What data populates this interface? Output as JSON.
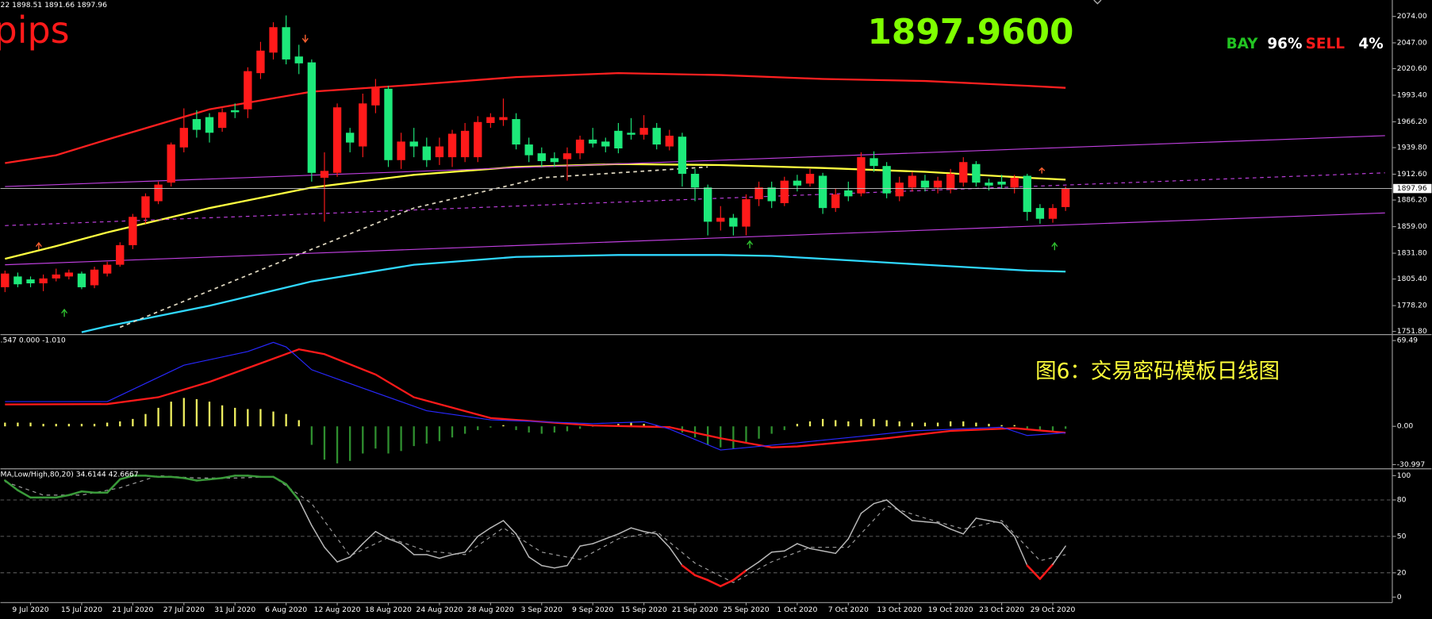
{
  "header": {
    "ohlc_text": "22 1898.51 1891.66 1897.96",
    "pips_text": "pips",
    "price_big": "1897.9600",
    "bay_label": "BAY",
    "bay_pct": "96%",
    "sell_label": "SELL",
    "sell_pct": "4%",
    "caption": "图6：交易密码模板日线图"
  },
  "chart_data": [
    {
      "type": "candlestick",
      "categories": [
        null,
        null,
        "9 Jul 2020",
        null,
        null,
        null,
        "15 Jul 2020",
        null,
        null,
        null,
        "21 Jul 2020",
        null,
        null,
        null,
        "27 Jul 2020",
        null,
        null,
        null,
        "31 Jul 2020",
        null,
        null,
        null,
        "6 Aug 2020",
        null,
        null,
        null,
        "12 Aug 2020",
        null,
        null,
        null,
        "18 Aug 2020",
        null,
        null,
        null,
        "24 Aug 2020",
        null,
        null,
        null,
        "28 Aug 2020",
        null,
        null,
        null,
        "3 Sep 2020",
        null,
        null,
        null,
        "9 Sep 2020",
        null,
        null,
        null,
        "15 Sep 2020",
        null,
        null,
        null,
        "21 Sep 2020",
        null,
        null,
        null,
        "25 Sep 2020",
        null,
        null,
        null,
        "1 Oct 2020",
        null,
        null,
        null,
        "7 Oct 2020",
        null,
        null,
        null,
        "13 Oct 2020",
        null,
        null,
        null,
        "19 Oct 2020",
        null,
        null,
        null,
        "23 Oct 2020",
        null,
        null,
        null,
        "29 Oct 2020",
        null
      ],
      "open": [
        1797,
        1808,
        1805,
        1801,
        1806,
        1808,
        1811,
        1799,
        1811,
        1820,
        1840,
        1868,
        1885,
        1904,
        1940,
        1969,
        1971,
        1960,
        1978,
        1979,
        2016,
        2037,
        2063,
        2033,
        2027,
        1909,
        1914,
        1955,
        1941,
        1983,
        2000,
        1927,
        1946,
        1941,
        1930,
        1930,
        1930,
        1930,
        1965,
        1968,
        1969,
        1943,
        1934,
        1929,
        1928,
        1934,
        1948,
        1946,
        1957,
        1955,
        1953,
        1960,
        1941,
        1951,
        1913,
        1899,
        1864,
        1868,
        1859,
        1887,
        1899,
        1883,
        1906,
        1903,
        1911,
        1878,
        1896,
        1893,
        1929,
        1921,
        1890,
        1899,
        1906,
        1899,
        1897,
        1904,
        1923,
        1904,
        1905,
        1899,
        1911,
        1878,
        1867,
        1879
      ],
      "high": [
        1814,
        1812,
        1808,
        1810,
        1816,
        1815,
        1813,
        1818,
        1823,
        1843,
        1872,
        1893,
        1905,
        1945,
        1980,
        1978,
        1975,
        1980,
        1985,
        2022,
        2048,
        2068,
        2075,
        2045,
        2030,
        1935,
        1985,
        1960,
        1995,
        2010,
        2003,
        1955,
        1960,
        1950,
        1950,
        1958,
        1965,
        1972,
        1975,
        1990,
        1975,
        1950,
        1940,
        1935,
        1940,
        1952,
        1960,
        1950,
        1965,
        1970,
        1973,
        1965,
        1958,
        1955,
        1918,
        1902,
        1880,
        1872,
        1892,
        1905,
        1905,
        1910,
        1912,
        1918,
        1914,
        1898,
        1905,
        1935,
        1936,
        1925,
        1910,
        1915,
        1912,
        1910,
        1918,
        1930,
        1926,
        1908,
        1912,
        1912,
        1913,
        1882,
        1882,
        1900
      ],
      "low": [
        1792,
        1797,
        1797,
        1793,
        1803,
        1805,
        1795,
        1796,
        1808,
        1818,
        1836,
        1862,
        1882,
        1900,
        1935,
        1950,
        1945,
        1956,
        1970,
        1970,
        2010,
        2030,
        2025,
        2015,
        1905,
        1864,
        1910,
        1935,
        1930,
        1975,
        1920,
        1918,
        1930,
        1920,
        1922,
        1920,
        1925,
        1925,
        1960,
        1962,
        1938,
        1925,
        1920,
        1920,
        1906,
        1928,
        1940,
        1935,
        1934,
        1948,
        1948,
        1938,
        1937,
        1900,
        1885,
        1850,
        1855,
        1850,
        1850,
        1880,
        1878,
        1880,
        1895,
        1900,
        1872,
        1874,
        1885,
        1890,
        1915,
        1888,
        1885,
        1895,
        1895,
        1893,
        1893,
        1900,
        1900,
        1896,
        1898,
        1893,
        1865,
        1862,
        1863,
        1875
      ],
      "close": [
        1811,
        1800,
        1801,
        1806,
        1810,
        1812,
        1797,
        1815,
        1820,
        1840,
        1869,
        1890,
        1902,
        1943,
        1960,
        1958,
        1955,
        1976,
        1976,
        2018,
        2039,
        2063,
        2030,
        2026,
        1914,
        1916,
        1981,
        1945,
        1985,
        2002,
        1927,
        1946,
        1941,
        1927,
        1941,
        1954,
        1957,
        1966,
        1971,
        1971,
        1943,
        1932,
        1926,
        1925,
        1934,
        1948,
        1944,
        1941,
        1939,
        1953,
        1960,
        1943,
        1952,
        1913,
        1899,
        1864,
        1868,
        1859,
        1887,
        1899,
        1885,
        1906,
        1901,
        1913,
        1878,
        1892,
        1890,
        1930,
        1921,
        1893,
        1904,
        1911,
        1899,
        1906,
        1913,
        1925,
        1904,
        1901,
        1902,
        1909,
        1874,
        1867,
        1878,
        1898
      ],
      "up_color": "#ff1a1a",
      "down_color": "#1de97a",
      "ylim": [
        1749,
        2088
      ],
      "yticks": [
        {
          "value": 2074,
          "label": "2074.00"
        },
        {
          "value": 2047,
          "label": "2047.00"
        },
        {
          "value": 2020.6,
          "label": "2020.60"
        },
        {
          "value": 1993.4,
          "label": "1993.40"
        },
        {
          "value": 1966.2,
          "label": "1966.20"
        },
        {
          "value": 1939.8,
          "label": "1939.80"
        },
        {
          "value": 1912.6,
          "label": "1912.60"
        },
        {
          "value": 1886.2,
          "label": "1886.20"
        },
        {
          "value": 1859,
          "label": "1859.00"
        },
        {
          "value": 1831.8,
          "label": "1831.80"
        },
        {
          "value": 1805.4,
          "label": "1805.40"
        },
        {
          "value": 1778.2,
          "label": "1778.20"
        },
        {
          "value": 1751.8,
          "label": "1751.80"
        }
      ],
      "price_line": {
        "value": 1897.96,
        "label": "1897.96"
      },
      "overlays": [
        {
          "color": "#ff2020",
          "width": 2,
          "dash": false,
          "x": [
            0,
            4,
            8,
            16,
            24,
            32,
            40,
            48,
            56,
            64,
            72,
            80,
            83
          ],
          "values": [
            1924,
            1932,
            1948,
            1979,
            1997,
            2004,
            2012,
            2016,
            2014,
            2010,
            2008,
            2003,
            2001
          ]
        },
        {
          "color": "#ffff40",
          "width": 2,
          "dash": false,
          "x": [
            0,
            4,
            8,
            16,
            24,
            32,
            40,
            48,
            56,
            64,
            72,
            80,
            83
          ],
          "values": [
            1826,
            1839,
            1853,
            1878,
            1899,
            1912,
            1920,
            1923,
            1922,
            1919,
            1915,
            1909,
            1907
          ]
        },
        {
          "color": "#30d8ff",
          "width": 2,
          "dash": false,
          "x": [
            6,
            8,
            16,
            24,
            32,
            40,
            48,
            56,
            60,
            64,
            72,
            80,
            83
          ],
          "values": [
            1751,
            1757,
            1778,
            1803,
            1820,
            1828,
            1830,
            1830,
            1829,
            1826,
            1820,
            1814,
            1813
          ]
        },
        {
          "color": "#c040e0",
          "width": 1,
          "dash": false,
          "x": [
            0,
            108
          ],
          "values": [
            1900,
            1952
          ]
        },
        {
          "color": "#c040e0",
          "width": 1,
          "dash": false,
          "x": [
            0,
            108
          ],
          "values": [
            1820,
            1873
          ]
        },
        {
          "color": "#c040e0",
          "width": 1,
          "dash": true,
          "x": [
            0,
            108
          ],
          "values": [
            1860,
            1914
          ]
        },
        {
          "color": "#e0d8c0",
          "width": 1.5,
          "dash": true,
          "x": [
            9,
            21,
            32,
            42,
            55
          ],
          "values": [
            1756,
            1820,
            1878,
            1909,
            1920
          ]
        }
      ]
    },
    {
      "type": "macd",
      "header": ".547 0.000 -1.010",
      "histogram": [
        3,
        3,
        3,
        2,
        2,
        2,
        2,
        2,
        3,
        4,
        6,
        10,
        15,
        20,
        23,
        22,
        20,
        17,
        15,
        14,
        14,
        12,
        10,
        5,
        -15,
        -27,
        -30,
        -28,
        -22,
        -18,
        -22,
        -20,
        -16,
        -14,
        -12,
        -9,
        -6,
        -3,
        -1,
        1,
        -3,
        -5,
        -6,
        -5,
        -4,
        -2,
        0.5,
        1,
        2,
        3,
        2,
        1,
        -1,
        -5,
        -9,
        -15,
        -17,
        -18,
        -14,
        -10,
        -6,
        -3,
        2,
        4,
        6,
        5,
        4,
        6,
        6,
        5,
        4,
        3,
        3,
        3,
        4,
        4,
        3,
        2,
        1,
        1,
        -2,
        -4,
        -4,
        -2
      ],
      "pos_color": "#f0f060",
      "neg_color": "#2f8f2f",
      "lines": [
        {
          "color": "#ff1a1a",
          "width": 2,
          "x": [
            0,
            8,
            12,
            16,
            20,
            23,
            25,
            29,
            32,
            38,
            46,
            52,
            56,
            60,
            62,
            69,
            74,
            79,
            83
          ],
          "values": [
            17.7,
            18,
            23.6,
            36,
            51,
            62.4,
            58.5,
            42,
            23.6,
            6.7,
            0.7,
            -0.7,
            -9.6,
            -17,
            -16.3,
            -9.6,
            -3.7,
            -1.5,
            -5.2
          ]
        },
        {
          "color": "#2828ff",
          "width": 1,
          "x": [
            0,
            8,
            14,
            19,
            21,
            22,
            24,
            28,
            33,
            38,
            46,
            50,
            52,
            56,
            62,
            67,
            71,
            78,
            80,
            83
          ],
          "values": [
            20,
            20,
            49.5,
            60.6,
            68,
            64.3,
            45.8,
            31,
            12.6,
            5.2,
            2.2,
            3.7,
            -2.2,
            -19.2,
            -13.3,
            -8.1,
            -3.7,
            -0.7,
            -7.4,
            -5.2
          ]
        }
      ],
      "ylim": [
        -33.3,
        73.2
      ],
      "yticks": [
        69.49,
        {
          "value": 0,
          "label": "0.00"
        },
        -30.997
      ]
    },
    {
      "type": "stochastic",
      "header": "MA,Low/High,80,20) 34.6144 42.6667",
      "values": [
        96,
        88,
        82,
        82,
        82,
        84,
        87,
        86,
        86,
        97,
        100,
        100,
        99,
        99,
        98,
        96,
        97,
        98,
        100,
        100,
        99,
        99,
        93,
        80,
        59,
        41,
        29,
        33,
        44,
        54,
        48,
        44,
        35,
        35,
        32,
        35,
        37,
        50,
        57,
        63,
        52,
        33,
        26,
        24,
        26,
        42,
        44,
        48,
        52,
        57,
        54,
        52,
        41,
        26,
        18,
        14,
        9,
        14,
        22,
        29,
        37,
        38,
        44,
        40,
        38,
        36,
        48,
        69,
        77,
        80,
        71,
        63,
        62,
        61,
        56,
        52,
        65,
        63,
        61,
        50,
        26,
        15,
        27,
        42
      ],
      "color": "#b8b8b8",
      "high_color": "#3a9a3a",
      "low_color": "#ff1a1a",
      "signal": {
        "color": "#a0a0a0",
        "x": [
          0,
          3,
          6,
          9,
          12,
          15,
          18,
          21,
          24,
          27,
          30,
          33,
          36,
          39,
          42,
          45,
          48,
          51,
          54,
          57,
          60,
          63,
          66,
          69,
          72,
          75,
          78,
          81,
          83
        ],
        "values": [
          95,
          84,
          84,
          90,
          100,
          98,
          98,
          99,
          77,
          34,
          49,
          38,
          35,
          57,
          37,
          31,
          48,
          54,
          28,
          12,
          29,
          41,
          41,
          75,
          65,
          56,
          63,
          30,
          35
        ]
      },
      "ylim": [
        -4.5,
        104.5
      ],
      "yticks": [
        100,
        80,
        50,
        20,
        0
      ]
    }
  ]
}
